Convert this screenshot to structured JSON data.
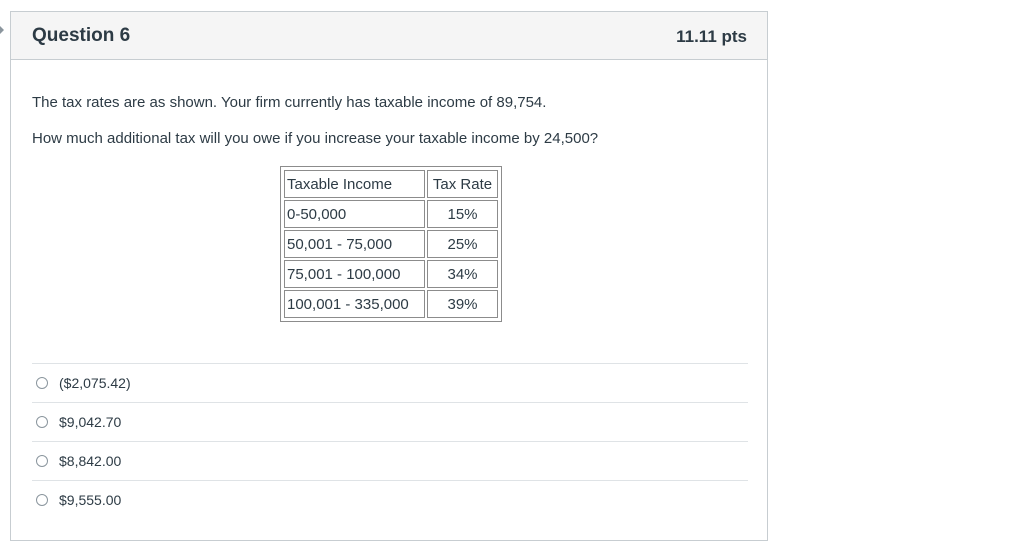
{
  "question": {
    "title": "Question 6",
    "points": "11.11 pts",
    "text_1": "The tax rates are as shown. Your firm currently has taxable income of 89,754.",
    "text_2": "How much additional tax will you owe if you increase your taxable income by 24,500?"
  },
  "table": {
    "headers": [
      "Taxable Income",
      "Tax Rate"
    ],
    "rows": [
      [
        "0-50,000",
        "15%"
      ],
      [
        "50,001 - 75,000",
        "25%"
      ],
      [
        "75,001 - 100,000",
        "34%"
      ],
      [
        "100,001 - 335,000",
        "39%"
      ]
    ]
  },
  "answers": [
    {
      "label": "($2,075.42)",
      "selected": false
    },
    {
      "label": "$9,042.70",
      "selected": false
    },
    {
      "label": "$8,842.00",
      "selected": false
    },
    {
      "label": "$9,555.00",
      "selected": false
    }
  ]
}
